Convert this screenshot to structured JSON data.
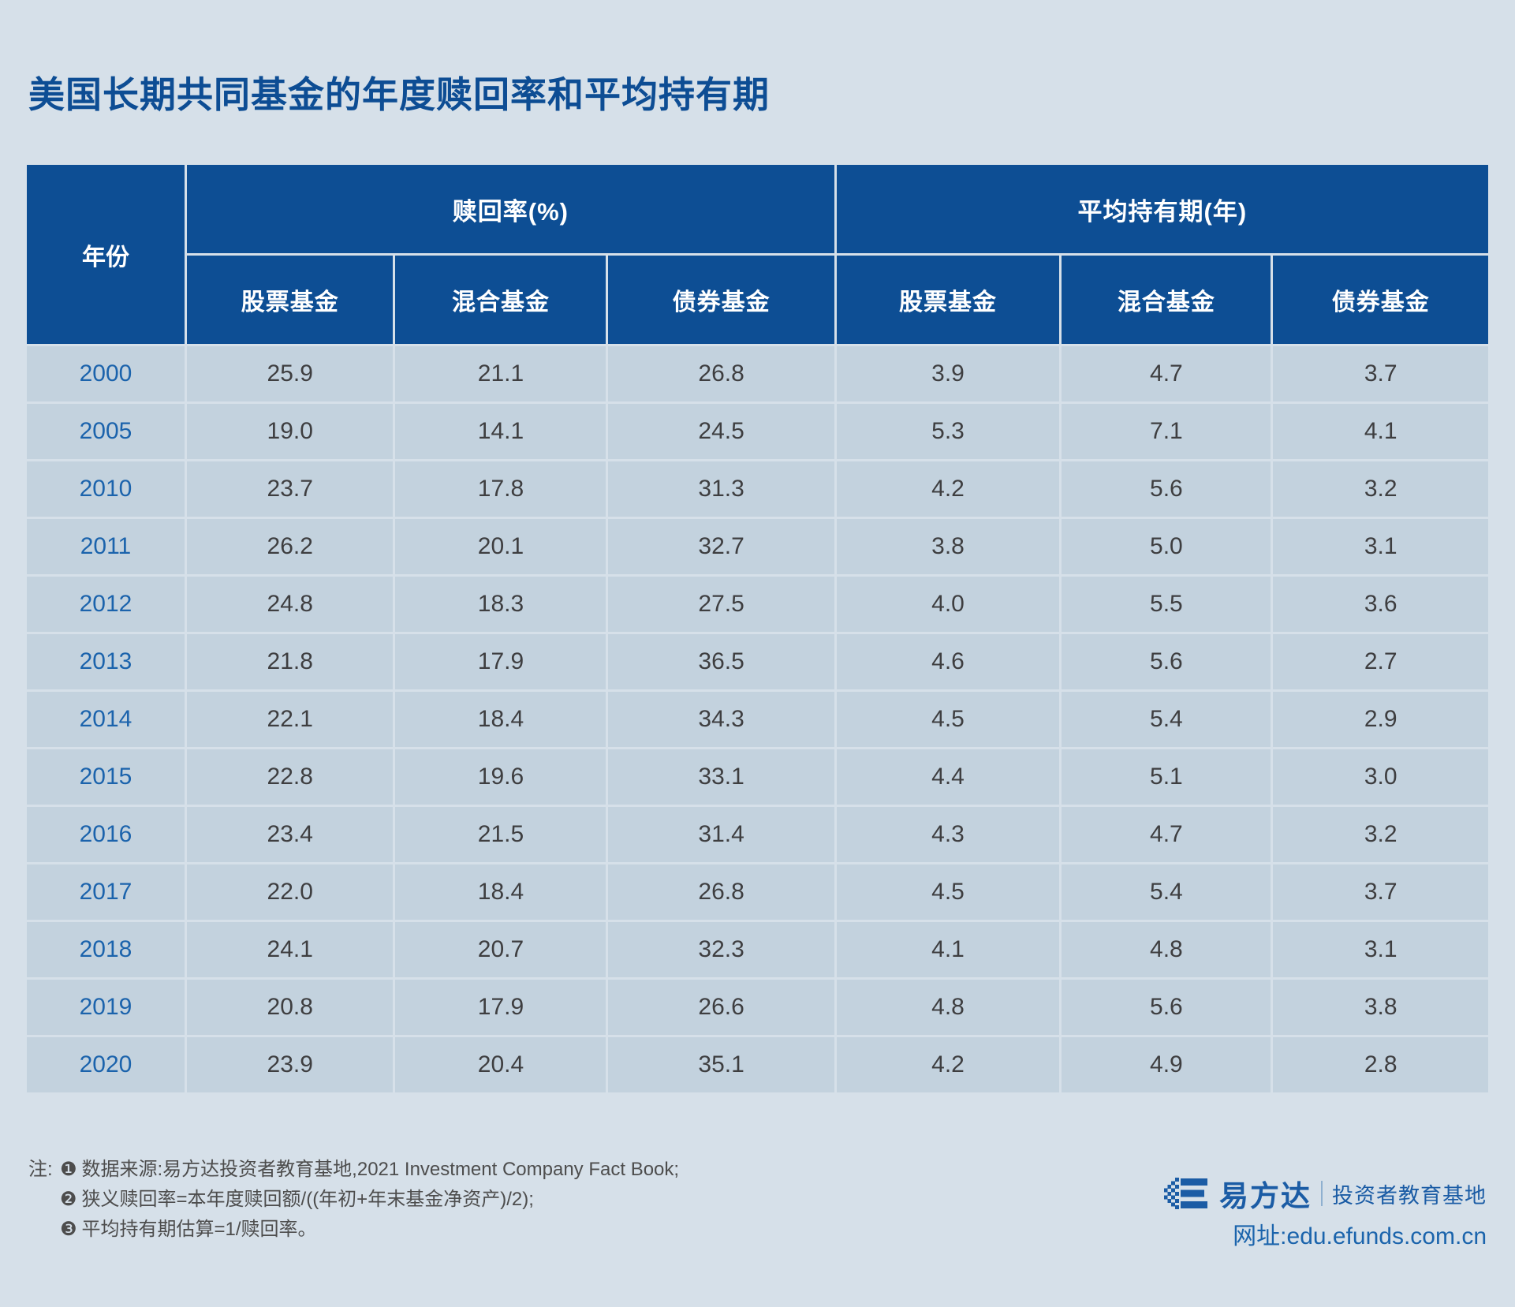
{
  "title": "美国长期共同基金的年度赎回率和平均持有期",
  "table": {
    "year_header": "年份",
    "groups": [
      {
        "label": "赎回率(%)"
      },
      {
        "label": "平均持有期(年)"
      }
    ],
    "sub_headers": [
      "股票基金",
      "混合基金",
      "债券基金",
      "股票基金",
      "混合基金",
      "债券基金"
    ],
    "rows": [
      {
        "year": "2000",
        "values": [
          "25.9",
          "21.1",
          "26.8",
          "3.9",
          "4.7",
          "3.7"
        ]
      },
      {
        "year": "2005",
        "values": [
          "19.0",
          "14.1",
          "24.5",
          "5.3",
          "7.1",
          "4.1"
        ]
      },
      {
        "year": "2010",
        "values": [
          "23.7",
          "17.8",
          "31.3",
          "4.2",
          "5.6",
          "3.2"
        ]
      },
      {
        "year": "2011",
        "values": [
          "26.2",
          "20.1",
          "32.7",
          "3.8",
          "5.0",
          "3.1"
        ]
      },
      {
        "year": "2012",
        "values": [
          "24.8",
          "18.3",
          "27.5",
          "4.0",
          "5.5",
          "3.6"
        ]
      },
      {
        "year": "2013",
        "values": [
          "21.8",
          "17.9",
          "36.5",
          "4.6",
          "5.6",
          "2.7"
        ]
      },
      {
        "year": "2014",
        "values": [
          "22.1",
          "18.4",
          "34.3",
          "4.5",
          "5.4",
          "2.9"
        ]
      },
      {
        "year": "2015",
        "values": [
          "22.8",
          "19.6",
          "33.1",
          "4.4",
          "5.1",
          "3.0"
        ]
      },
      {
        "year": "2016",
        "values": [
          "23.4",
          "21.5",
          "31.4",
          "4.3",
          "4.7",
          "3.2"
        ]
      },
      {
        "year": "2017",
        "values": [
          "22.0",
          "18.4",
          "26.8",
          "4.5",
          "5.4",
          "3.7"
        ]
      },
      {
        "year": "2018",
        "values": [
          "24.1",
          "20.7",
          "32.3",
          "4.1",
          "4.8",
          "3.1"
        ]
      },
      {
        "year": "2019",
        "values": [
          "20.8",
          "17.9",
          "26.6",
          "4.8",
          "5.6",
          "3.8"
        ]
      },
      {
        "year": "2020",
        "values": [
          "23.9",
          "20.4",
          "35.1",
          "4.2",
          "4.9",
          "2.8"
        ]
      }
    ]
  },
  "notes": {
    "prefix": "注:",
    "items": [
      {
        "bullet": "❶",
        "text": "数据来源:易方达投资者教育基地,2021 Investment Company Fact Book;"
      },
      {
        "bullet": "❷",
        "text": "狭义赎回率=本年度赎回额/((年初+年末基金净资产)/2);"
      },
      {
        "bullet": "❸",
        "text": "平均持有期估算=1/赎回率。"
      }
    ]
  },
  "footer": {
    "brand": "易方达",
    "brand_suffix": "投资者教育基地",
    "url": "网址:edu.efunds.com.cn"
  },
  "colors": {
    "page_background": "#d6e0e9",
    "header_navy": "#0d4e94",
    "row_background": "#c3d2de",
    "title_blue": "#0d4d94",
    "year_blue": "#1b63ac",
    "value_gray": "#3e3e40",
    "note_gray": "#4d4d4d",
    "link_blue": "#1b64ac"
  },
  "chart_data": {
    "type": "table",
    "title": "美国长期共同基金的年度赎回率和平均持有期",
    "column_groups": [
      "赎回率(%)",
      "平均持有期(年)"
    ],
    "columns": [
      "年份",
      "赎回率(%) 股票基金",
      "赎回率(%) 混合基金",
      "赎回率(%) 债券基金",
      "平均持有期(年) 股票基金",
      "平均持有期(年) 混合基金",
      "平均持有期(年) 债券基金"
    ],
    "rows": [
      [
        2000,
        25.9,
        21.1,
        26.8,
        3.9,
        4.7,
        3.7
      ],
      [
        2005,
        19.0,
        14.1,
        24.5,
        5.3,
        7.1,
        4.1
      ],
      [
        2010,
        23.7,
        17.8,
        31.3,
        4.2,
        5.6,
        3.2
      ],
      [
        2011,
        26.2,
        20.1,
        32.7,
        3.8,
        5.0,
        3.1
      ],
      [
        2012,
        24.8,
        18.3,
        27.5,
        4.0,
        5.5,
        3.6
      ],
      [
        2013,
        21.8,
        17.9,
        36.5,
        4.6,
        5.6,
        2.7
      ],
      [
        2014,
        22.1,
        18.4,
        34.3,
        4.5,
        5.4,
        2.9
      ],
      [
        2015,
        22.8,
        19.6,
        33.1,
        4.4,
        5.1,
        3.0
      ],
      [
        2016,
        23.4,
        21.5,
        31.4,
        4.3,
        4.7,
        3.2
      ],
      [
        2017,
        22.0,
        18.4,
        26.8,
        4.5,
        5.4,
        3.7
      ],
      [
        2018,
        24.1,
        20.7,
        32.3,
        4.1,
        4.8,
        3.1
      ],
      [
        2019,
        20.8,
        17.9,
        26.6,
        4.8,
        5.6,
        3.8
      ],
      [
        2020,
        23.9,
        20.4,
        35.1,
        4.2,
        4.9,
        2.8
      ]
    ],
    "source_notes": [
      "数据来源:易方达投资者教育基地,2021 Investment Company Fact Book;",
      "狭义赎回率=本年度赎回额/((年初+年末基金净资产)/2);",
      "平均持有期估算=1/赎回率。"
    ]
  }
}
